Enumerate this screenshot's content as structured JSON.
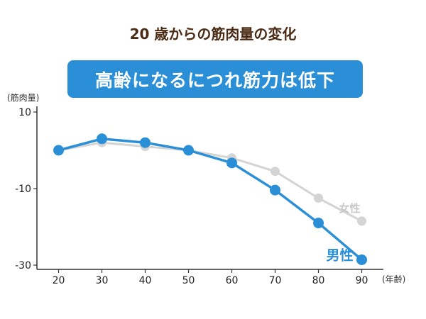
{
  "header": {
    "title": "20 歳からの筋肉量の変化",
    "banner": "高齢になるにつれ筋力は低下"
  },
  "chart_data": {
    "type": "line",
    "x": [
      20,
      30,
      40,
      50,
      60,
      70,
      80,
      90
    ],
    "xlabel": "(年齢)",
    "ylabel": "(筋肉量)",
    "yticks": [
      10,
      -10,
      -30
    ],
    "ylim": [
      -30,
      10
    ],
    "xlim": [
      15,
      95
    ],
    "grid": false,
    "series": [
      {
        "name": "女性",
        "color": "#d4d4d4",
        "values": [
          0,
          2,
          1,
          0,
          -2,
          -5.5,
          -12.5,
          -18.5
        ]
      },
      {
        "name": "男性",
        "color": "#2a8fd6",
        "values": [
          0,
          3,
          2,
          0,
          -3.3,
          -10.4,
          -19,
          -28.6
        ]
      }
    ]
  }
}
